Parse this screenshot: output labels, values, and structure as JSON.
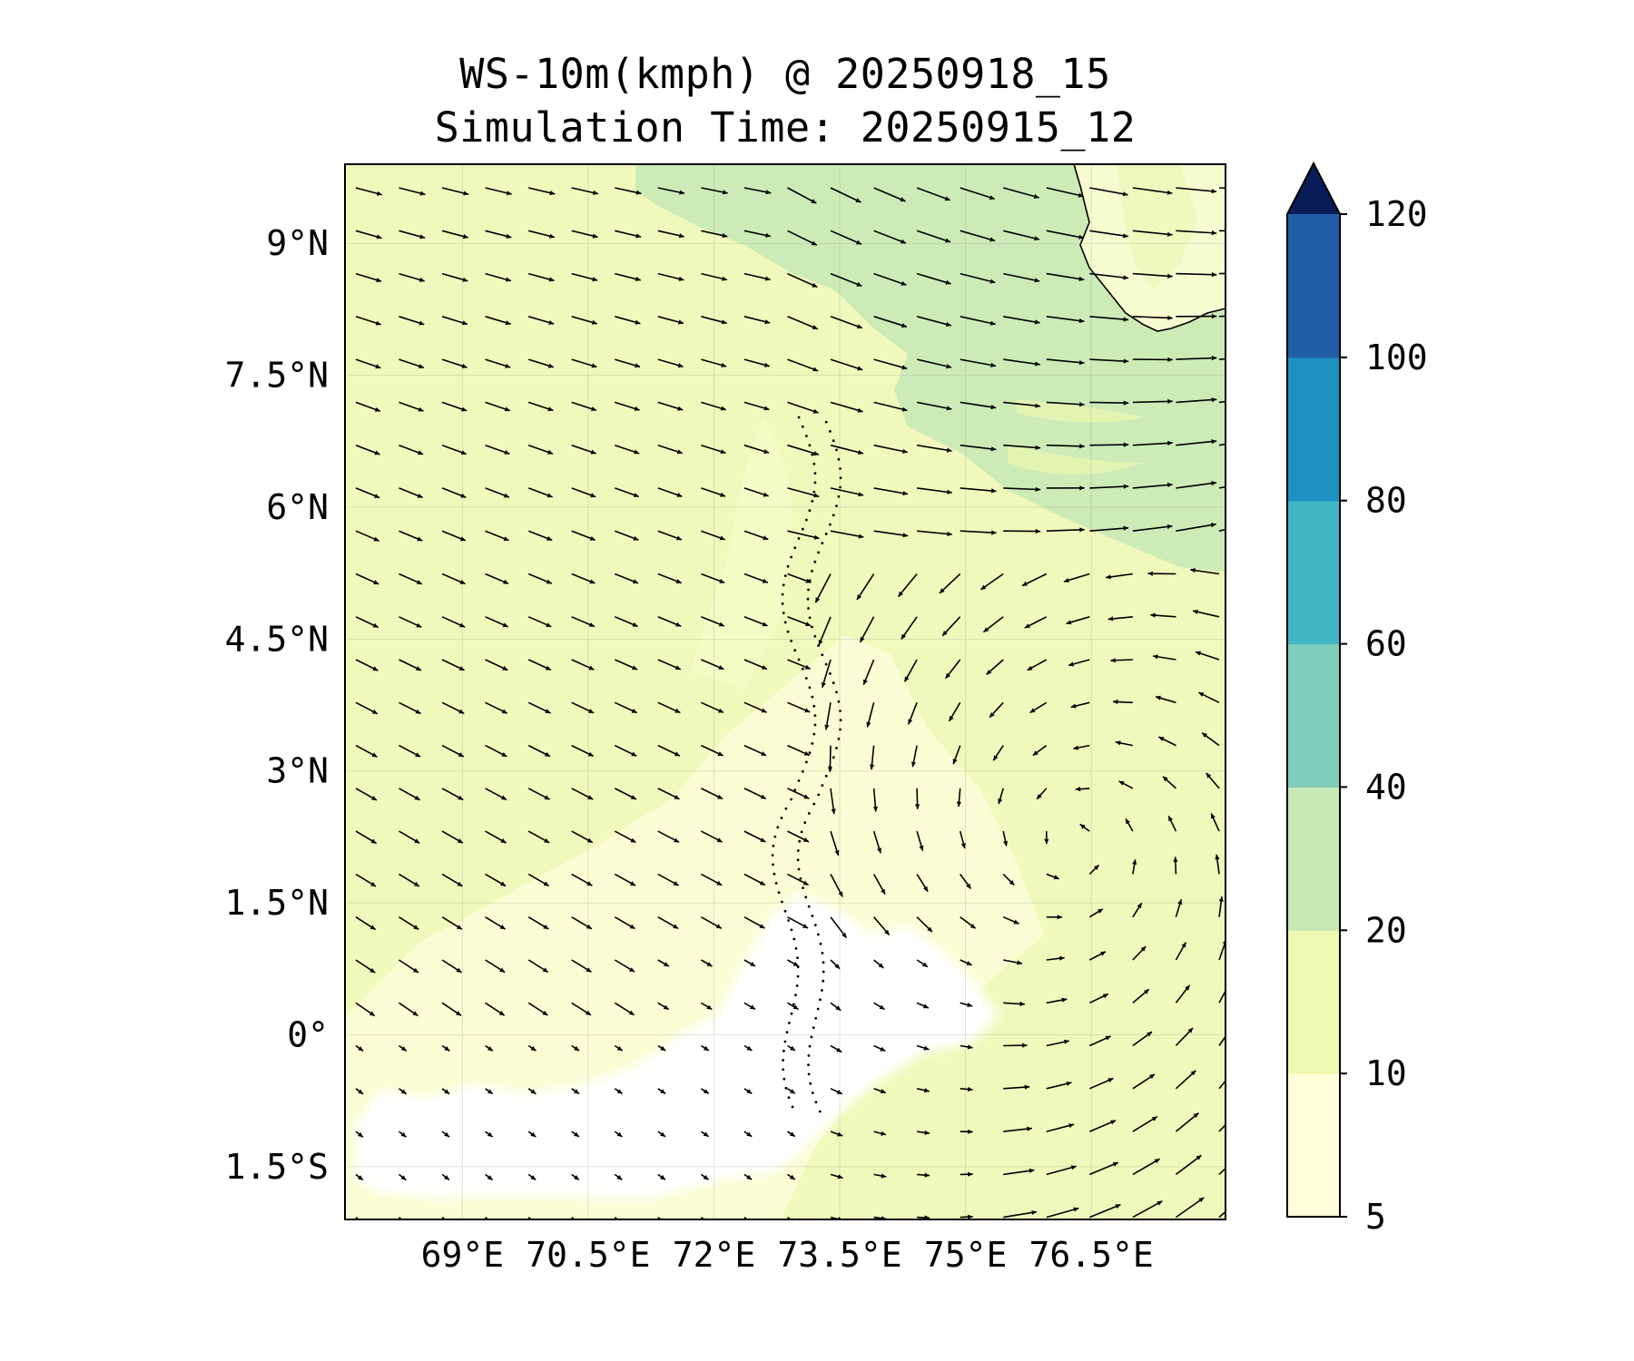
{
  "title": {
    "line1": "WS-10m(kmph) @ 20250918_15",
    "line2": "Simulation Time: 20250915_12"
  },
  "map": {
    "lon_range": [
      67.6,
      78.1
    ],
    "lat_range": [
      -2.1,
      9.9
    ],
    "lon_ticks": [
      {
        "value": 69.0,
        "label": "69°E"
      },
      {
        "value": 70.5,
        "label": "70.5°E"
      },
      {
        "value": 72.0,
        "label": "72°E"
      },
      {
        "value": 73.5,
        "label": "73.5°E"
      },
      {
        "value": 75.0,
        "label": "75°E"
      },
      {
        "value": 76.5,
        "label": "76.5°E"
      }
    ],
    "lat_ticks": [
      {
        "value": 9.0,
        "label": "9°N"
      },
      {
        "value": 7.5,
        "label": "7.5°N"
      },
      {
        "value": 6.0,
        "label": "6°N"
      },
      {
        "value": 4.5,
        "label": "4.5°N"
      },
      {
        "value": 3.0,
        "label": "3°N"
      },
      {
        "value": 1.5,
        "label": "1.5°N"
      },
      {
        "value": 0.0,
        "label": "0°"
      },
      {
        "value": -1.5,
        "label": "1.5°S"
      }
    ],
    "gridlines": true,
    "land_region": "India southern tip (top-right)"
  },
  "colorbar": {
    "levels": [
      5,
      10,
      20,
      40,
      60,
      80,
      100,
      120
    ],
    "labels": [
      "5",
      "10",
      "20",
      "40",
      "60",
      "80",
      "100",
      "120"
    ],
    "colors": [
      "#ffffd9",
      "#edf8b1",
      "#c7e9b4",
      "#7fcdbb",
      "#41b6c4",
      "#1d91c0",
      "#225ea8",
      "#0c2c84"
    ],
    "extend": "max",
    "extend_color": "#081d58"
  }
}
